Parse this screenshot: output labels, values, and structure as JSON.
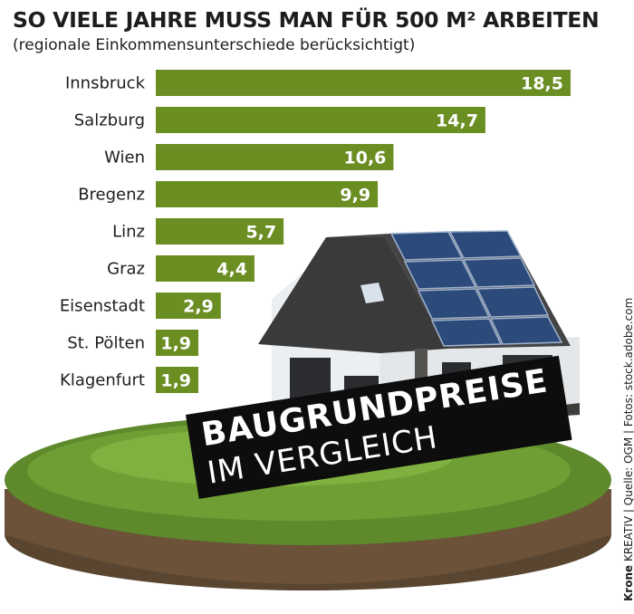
{
  "header": {
    "title": "SO VIELE JAHRE MUSS MAN FÜR 500 M² ARBEITEN",
    "subtitle": "(regionale Einkommensunterschiede berücksichtigt)"
  },
  "badge": {
    "line1": "BAUGRUNDPREISE",
    "line2": "IM VERGLEICH"
  },
  "credit": {
    "brand": "Krone",
    "rest": " KREATIV | Quelle: OGM | Fotos: stock.adobe.com"
  },
  "colors": {
    "bar": "#6b8e23",
    "bar_label": "#ffffff",
    "text": "#1d1d1b",
    "badge": "#0d0d0d"
  },
  "chart_data": {
    "type": "bar",
    "orientation": "horizontal",
    "categories": [
      "Innsbruck",
      "Salzburg",
      "Wien",
      "Bregenz",
      "Linz",
      "Graz",
      "Eisenstadt",
      "St. Pölten",
      "Klagenfurt"
    ],
    "values": [
      18.5,
      14.7,
      10.6,
      9.9,
      5.7,
      4.4,
      2.9,
      1.9,
      1.9
    ],
    "value_labels": [
      "18,5",
      "14,7",
      "10,6",
      "9,9",
      "5,7",
      "4,4",
      "2,9",
      "1,9",
      "1,9"
    ],
    "title": "SO VIELE JAHRE MUSS MAN FÜR 500 M² ARBEITEN",
    "subtitle": "(regionale Einkommensunterschiede berücksichtigt)",
    "xlim": [
      0,
      18.5
    ],
    "grid": false,
    "legend": "none"
  }
}
